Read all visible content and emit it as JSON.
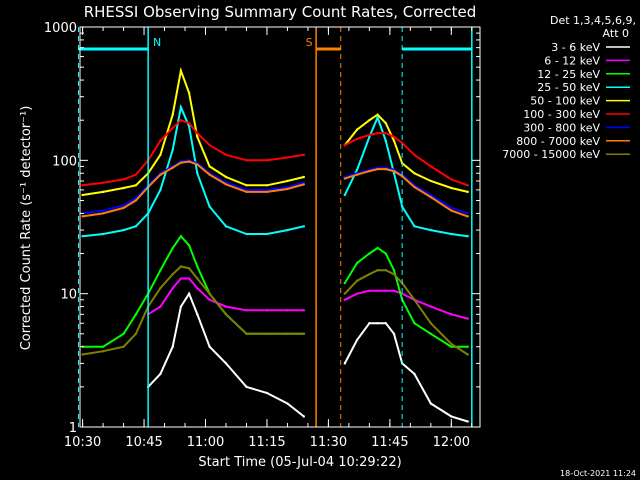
{
  "chart_data": {
    "type": "line",
    "title": "RHESSI Observing Summary Count Rates, Corrected",
    "xlabel": "Start Time (05-Jul-04 10:29:22)",
    "ylabel": "Corrected Count Rate (s⁻¹ detector⁻¹)",
    "xlim": [
      "10:29:22",
      "12:07:00"
    ],
    "ylim": [
      1,
      1000
    ],
    "yscale": "log",
    "x_ticks": [
      "10:30",
      "10:45",
      "11:00",
      "11:15",
      "11:30",
      "11:45",
      "12:00"
    ],
    "y_ticks": [
      1,
      10,
      100,
      1000
    ],
    "legend_title": "Det 1,3,4,5,6,9,",
    "legend_subtitle": "Att 0",
    "legend_position": "right",
    "footer_date": "18-Oct-2021 11:24",
    "gap": [
      "11:25",
      "11:34"
    ],
    "markers": [
      {
        "label": "N",
        "type": "night",
        "start": "10:29",
        "end": "10:46",
        "color": "#00ffff"
      },
      {
        "label": "",
        "type": "night",
        "start": "11:48",
        "end": "12:05",
        "color": "#00ffff"
      },
      {
        "label": "S",
        "type": "saa",
        "start": "11:27",
        "end": "11:33",
        "color": "#ff8000"
      }
    ],
    "x": [
      "10:30",
      "10:35",
      "10:40",
      "10:43",
      "10:46",
      "10:49",
      "10:52",
      "10:54",
      "10:56",
      "10:58",
      "11:01",
      "11:05",
      "11:10",
      "11:15",
      "11:20",
      "11:24",
      "11:34",
      "11:37",
      "11:40",
      "11:42",
      "11:44",
      "11:46",
      "11:48",
      "11:51",
      "11:55",
      "12:00",
      "12:04"
    ],
    "series": [
      {
        "name": "3 - 6 keV",
        "color": "#ffffff",
        "values": [
          null,
          null,
          null,
          null,
          2,
          2.5,
          4,
          8,
          10,
          7,
          4,
          3,
          2,
          1.8,
          1.5,
          1.2,
          3,
          4.5,
          6,
          6,
          6,
          5,
          3,
          2.5,
          1.5,
          1.2,
          1.1
        ]
      },
      {
        "name": "6 - 12 keV",
        "color": "#ff00ff",
        "values": [
          null,
          null,
          null,
          null,
          7,
          8,
          11,
          13,
          13,
          11,
          9,
          8,
          7.5,
          7.5,
          7.5,
          7.5,
          9,
          10,
          10.5,
          10.5,
          10.5,
          10.5,
          10,
          9,
          8,
          7,
          6.5
        ]
      },
      {
        "name": "12 - 25 keV",
        "color": "#00ff00",
        "values": [
          4,
          4,
          5,
          7,
          10,
          15,
          22,
          27,
          23,
          16,
          10,
          7,
          5,
          5,
          5,
          5,
          12,
          17,
          20,
          22,
          20,
          15,
          9,
          6,
          5,
          4,
          4
        ]
      },
      {
        "name": "25 - 50 keV",
        "color": "#00ffff",
        "values": [
          27,
          28,
          30,
          32,
          40,
          60,
          120,
          250,
          180,
          80,
          45,
          32,
          28,
          28,
          30,
          32,
          55,
          85,
          150,
          210,
          140,
          80,
          45,
          32,
          30,
          28,
          27
        ]
      },
      {
        "name": "50 - 100 keV",
        "color": "#ffff00",
        "values": [
          55,
          58,
          62,
          65,
          80,
          110,
          220,
          470,
          320,
          150,
          90,
          75,
          65,
          65,
          70,
          75,
          130,
          170,
          200,
          220,
          190,
          140,
          95,
          80,
          70,
          62,
          58
        ]
      },
      {
        "name": "100 - 300 keV",
        "color": "#ff0000",
        "values": [
          65,
          68,
          72,
          78,
          100,
          140,
          175,
          200,
          190,
          160,
          130,
          110,
          100,
          100,
          105,
          110,
          130,
          145,
          155,
          160,
          160,
          150,
          135,
          110,
          90,
          72,
          65
        ]
      },
      {
        "name": "300 - 800 keV",
        "color": "#0000ff",
        "values": [
          40,
          42,
          46,
          52,
          65,
          80,
          90,
          98,
          100,
          95,
          80,
          68,
          60,
          60,
          63,
          68,
          75,
          80,
          85,
          88,
          88,
          85,
          78,
          65,
          55,
          44,
          40
        ]
      },
      {
        "name": "800 - 7000 keV",
        "color": "#ff8000",
        "values": [
          38,
          40,
          44,
          50,
          63,
          78,
          88,
          96,
          98,
          93,
          78,
          66,
          58,
          58,
          61,
          66,
          73,
          78,
          83,
          86,
          86,
          83,
          76,
          63,
          53,
          42,
          38
        ]
      },
      {
        "name": "7000 - 15000 keV",
        "color": "#808000",
        "values": [
          3.5,
          3.7,
          4,
          5,
          8,
          11,
          14,
          16,
          15.5,
          13,
          10,
          7,
          5,
          5,
          5,
          5,
          10,
          12.5,
          14,
          15,
          15,
          14,
          12,
          9,
          6,
          4.2,
          3.5
        ]
      }
    ]
  }
}
